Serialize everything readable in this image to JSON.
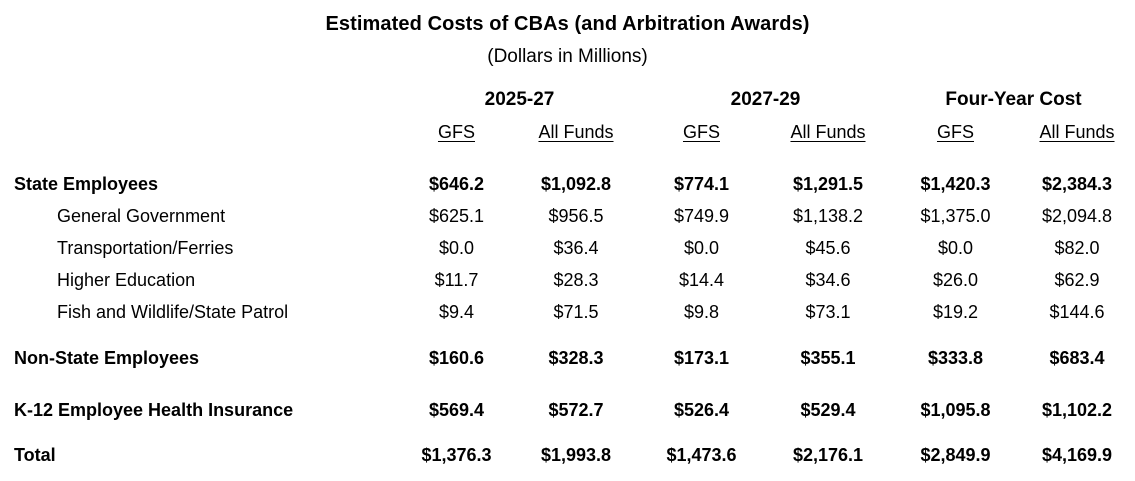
{
  "title": "Estimated Costs of CBAs (and Arbitration Awards)",
  "subtitle": "(Dollars in Millions)",
  "colors": {
    "text": "#000000",
    "background": "#ffffff"
  },
  "table": {
    "column_groups": [
      {
        "label": "2025-27"
      },
      {
        "label": "2027-29"
      },
      {
        "label": "Four-Year Cost"
      }
    ],
    "sub_headers": [
      "GFS",
      "All Funds",
      "GFS",
      "All Funds",
      "GFS",
      "All Funds"
    ],
    "rows": [
      {
        "label": "State Employees",
        "style": "bold",
        "values": [
          "$646.2",
          "$1,092.8",
          "$774.1",
          "$1,291.5",
          "$1,420.3",
          "$2,384.3"
        ]
      },
      {
        "label": "General Government",
        "style": "sub",
        "values": [
          "$625.1",
          "$956.5",
          "$749.9",
          "$1,138.2",
          "$1,375.0",
          "$2,094.8"
        ]
      },
      {
        "label": "Transportation/Ferries",
        "style": "sub",
        "values": [
          "$0.0",
          "$36.4",
          "$0.0",
          "$45.6",
          "$0.0",
          "$82.0"
        ]
      },
      {
        "label": "Higher Education",
        "style": "sub",
        "values": [
          "$11.7",
          "$28.3",
          "$14.4",
          "$34.6",
          "$26.0",
          "$62.9"
        ]
      },
      {
        "label": "Fish and Wildlife/State Patrol",
        "style": "sub",
        "values": [
          "$9.4",
          "$71.5",
          "$9.8",
          "$73.1",
          "$19.2",
          "$144.6"
        ]
      },
      {
        "label": "Non-State Employees",
        "style": "bold",
        "values": [
          "$160.6",
          "$328.3",
          "$173.1",
          "$355.1",
          "$333.8",
          "$683.4"
        ]
      },
      {
        "label": "K-12 Employee Health Insurance",
        "style": "bold",
        "values": [
          "$569.4",
          "$572.7",
          "$526.4",
          "$529.4",
          "$1,095.8",
          "$1,102.2"
        ]
      },
      {
        "label": "Total",
        "style": "bold",
        "values": [
          "$1,376.3",
          "$1,993.8",
          "$1,473.6",
          "$2,176.1",
          "$2,849.9",
          "$4,169.9"
        ]
      }
    ]
  }
}
